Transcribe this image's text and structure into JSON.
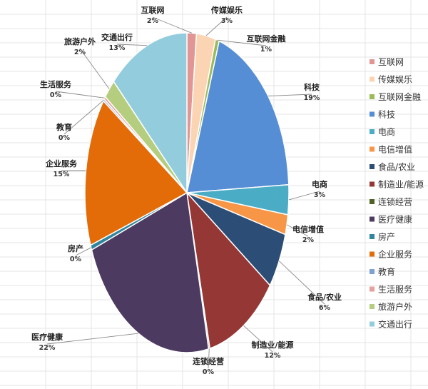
{
  "chart_data": {
    "type": "pie",
    "legend_position": "right",
    "categories": [
      "互联网",
      "传媒娱乐",
      "互联网金融",
      "科技",
      "电商",
      "电信增值",
      "食品/农业",
      "制造业/能源",
      "连锁经营",
      "医疗健康",
      "房产",
      "企业服务",
      "教育",
      "生活服务",
      "旅游户外",
      "交通出行"
    ],
    "values": [
      1.5,
      3,
      0.6,
      19,
      3,
      2,
      5.6,
      11.5,
      0.2,
      22.5,
      0.5,
      15,
      0.2,
      0.3,
      2,
      12.7
    ],
    "data_labels": [
      "2%",
      "3%",
      "1%",
      "19%",
      "3%",
      "2%",
      "6%",
      "12%",
      "0%",
      "22%",
      "0%",
      "15%",
      "0%",
      "0%",
      "2%",
      "13%"
    ],
    "colors": [
      "#e29694",
      "#fbd4b4",
      "#9bbb59",
      "#558ed5",
      "#4bacc6",
      "#f79646",
      "#2c4d75",
      "#953735",
      "#4f6228",
      "#4d3a60",
      "#31859c",
      "#e36c09",
      "#7ea2cf",
      "#e6a09e",
      "#b4cd7e",
      "#93cddd"
    ]
  }
}
